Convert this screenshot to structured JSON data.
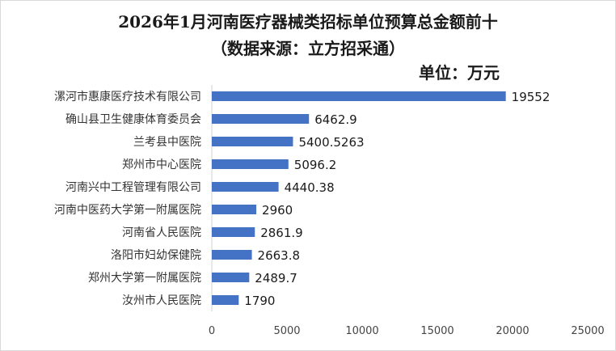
{
  "chart_data": {
    "type": "bar",
    "orientation": "horizontal",
    "title": "2026年1月河南医疗器械类招标单位预算总金额前十",
    "subtitle": "（数据来源：立方招采通）",
    "unit_label": "单位：万元",
    "categories": [
      "漯河市惠康医疗技术有限公司",
      "确山县卫生健康体育委员会",
      "兰考县中医院",
      "郑州市中心医院",
      "河南兴中工程管理有限公司",
      "河南中医药大学第一附属医院",
      "河南省人民医院",
      "洛阳市妇幼保健院",
      "郑州大学第一附属医院",
      "汝州市人民医院"
    ],
    "values": [
      19552,
      6462.9,
      5400.5263,
      5096.2,
      4440.38,
      2960,
      2861.9,
      2663.8,
      2489.7,
      1790
    ],
    "value_labels": [
      "19552",
      "6462.9",
      "5400.5263",
      "5096.2",
      "4440.38",
      "2960",
      "2861.9",
      "2663.8",
      "2489.7",
      "1790"
    ],
    "xlim": [
      0,
      25000
    ],
    "x_ticks": [
      "0",
      "5000",
      "10000",
      "15000",
      "20000",
      "25000"
    ],
    "x_tick_values": [
      0,
      5000,
      10000,
      15000,
      20000,
      25000
    ],
    "bar_color": "#4472C4",
    "grid": false,
    "legend": "none"
  }
}
